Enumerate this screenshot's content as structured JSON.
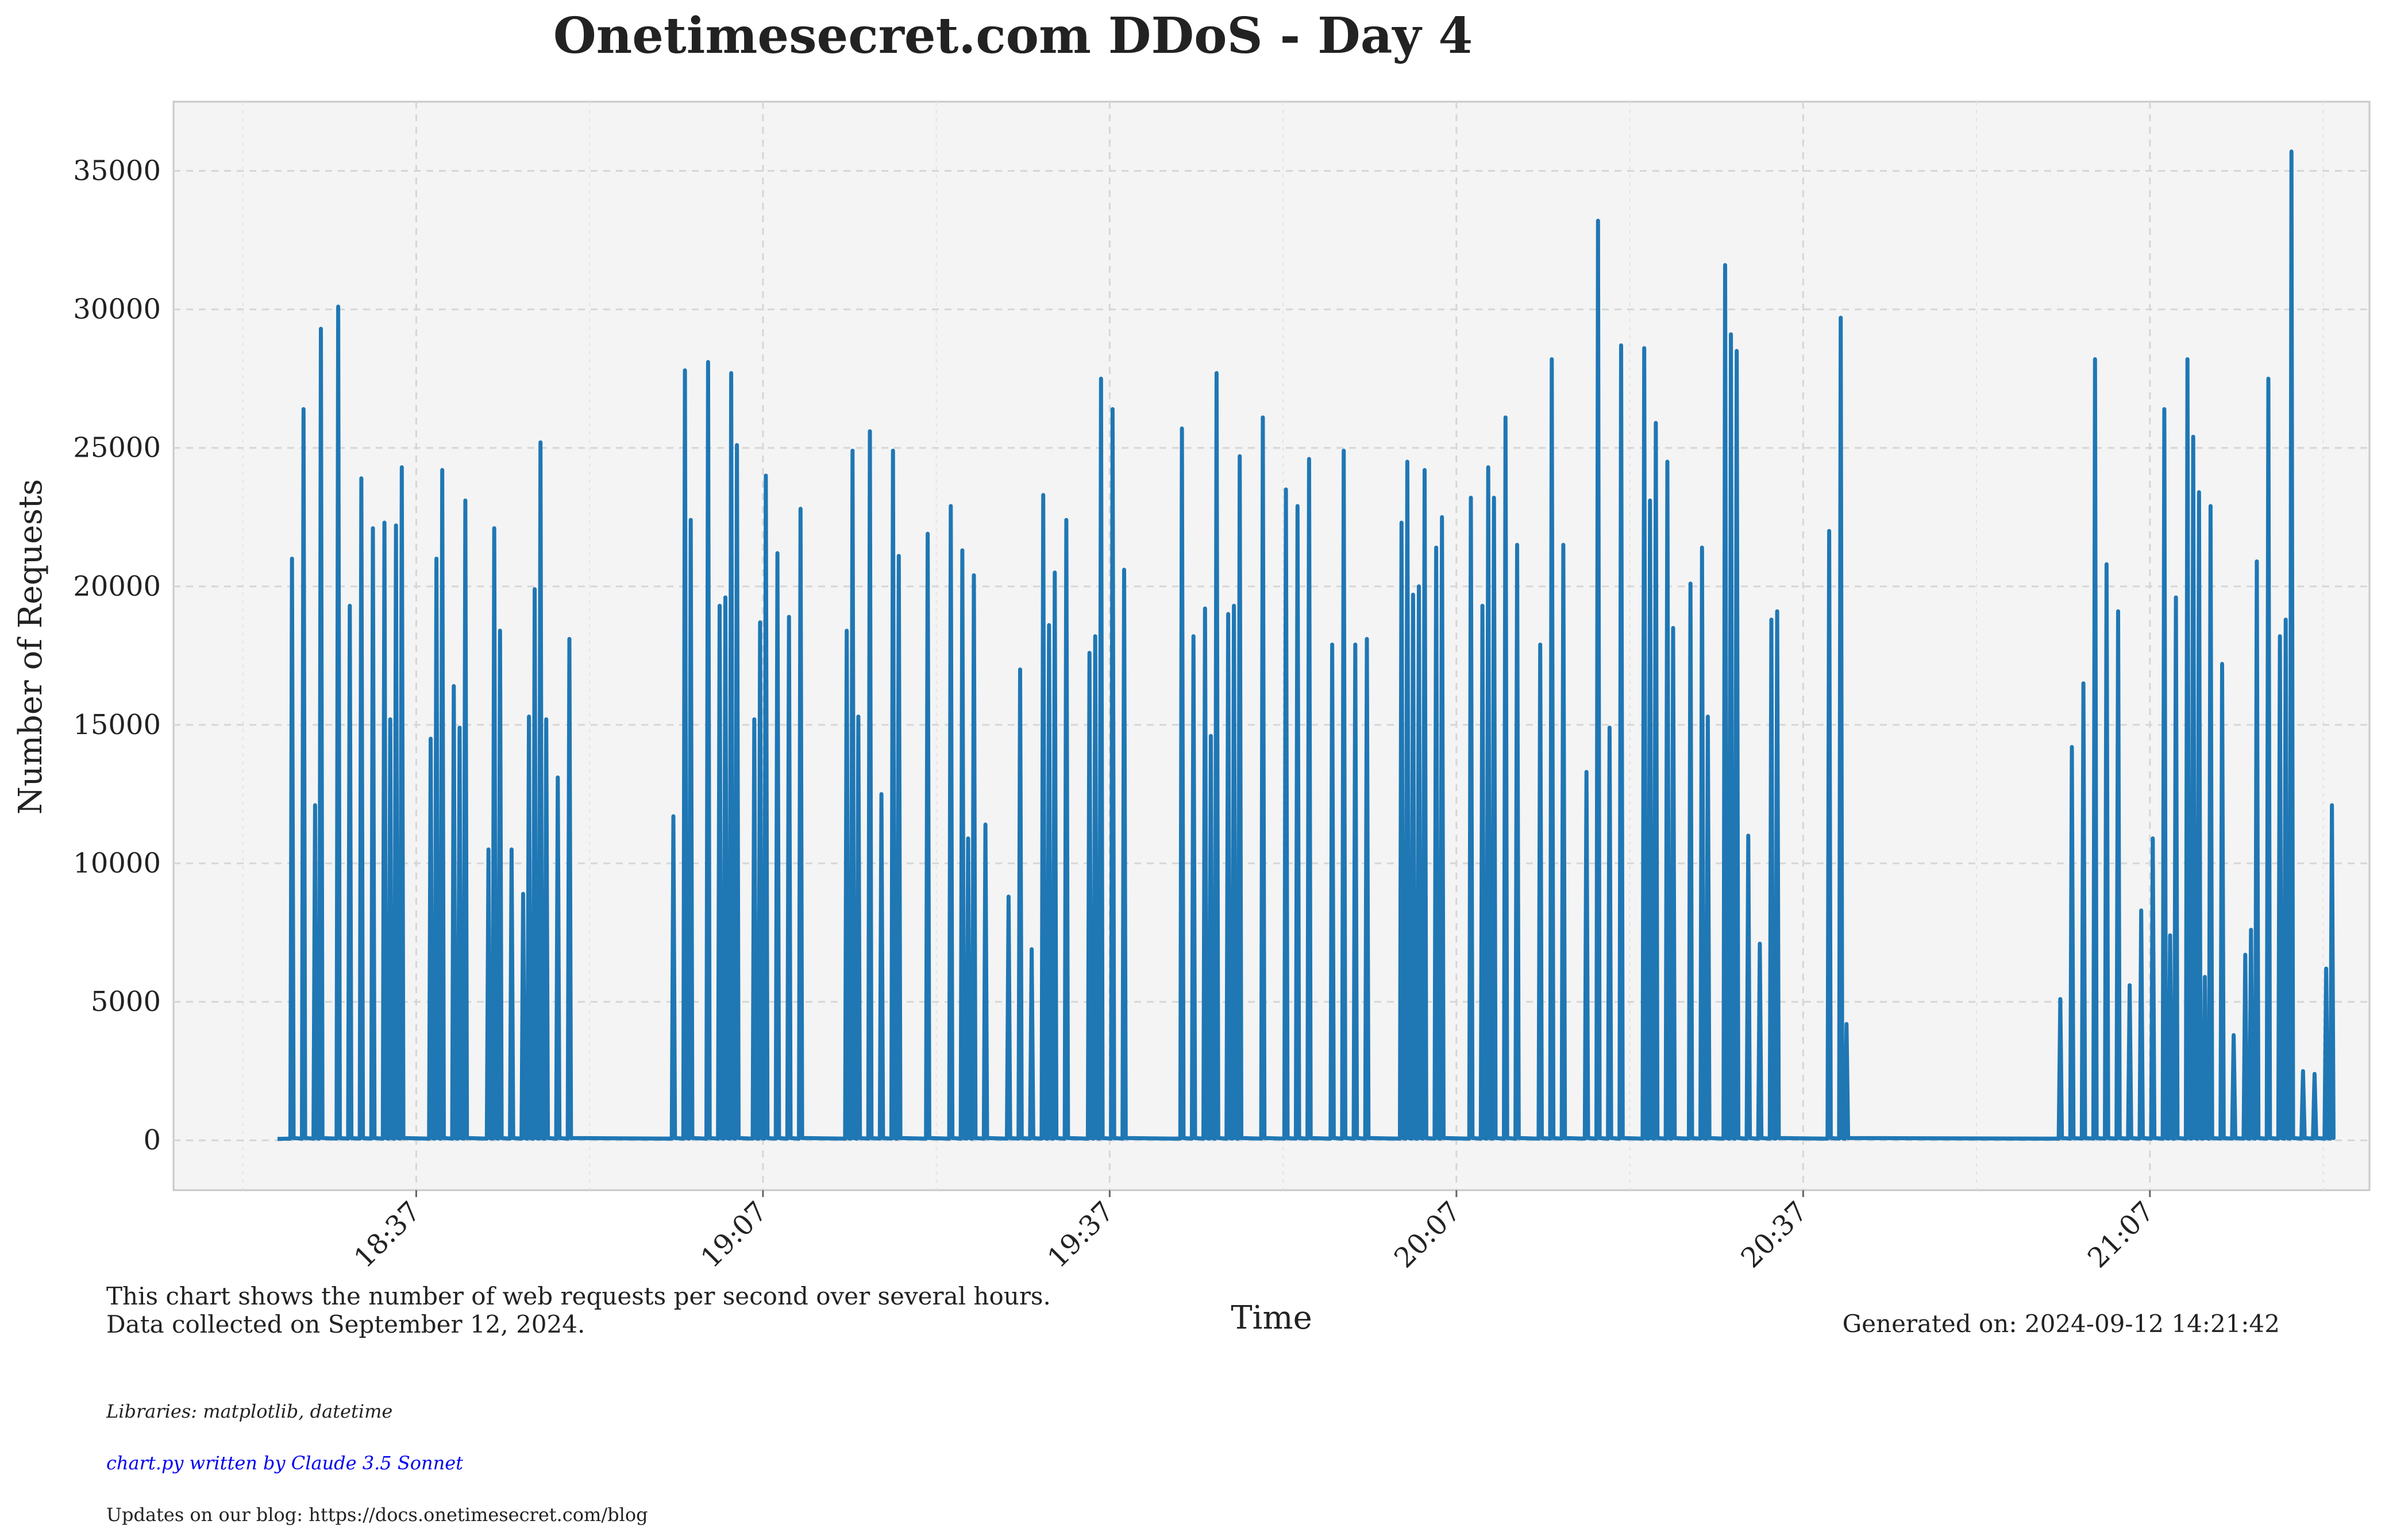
{
  "chart_data": {
    "type": "area",
    "title": "Onetimesecret.com DDoS - Day 4",
    "xlabel": "Time",
    "ylabel": "Number of Requests",
    "x_ticks": [
      "18:37",
      "19:07",
      "19:37",
      "20:07",
      "20:37",
      "21:07"
    ],
    "x_range": [
      "18:16",
      "21:26"
    ],
    "y_ticks": [
      0,
      5000,
      10000,
      15000,
      20000,
      25000,
      30000,
      35000
    ],
    "ylim": [
      -1800,
      37500
    ],
    "grid": true,
    "line_color": "#1f77b4",
    "fill_color": "#aec7e8",
    "plot_background": "#f4f4f4",
    "peaks": [
      [
        "18:26",
        21000
      ],
      [
        "18:27",
        26400
      ],
      [
        "18:28",
        12100
      ],
      [
        "18:28",
        29300
      ],
      [
        "18:30",
        30100
      ],
      [
        "18:31",
        19300
      ],
      [
        "18:32",
        23900
      ],
      [
        "18:33",
        22100
      ],
      [
        "18:34",
        22300
      ],
      [
        "18:34",
        15200
      ],
      [
        "18:35",
        22200
      ],
      [
        "18:35",
        24300
      ],
      [
        "18:38",
        14500
      ],
      [
        "18:38",
        21000
      ],
      [
        "18:39",
        24200
      ],
      [
        "18:40",
        16400
      ],
      [
        "18:40",
        14900
      ],
      [
        "18:41",
        23100
      ],
      [
        "18:43",
        10500
      ],
      [
        "18:43",
        22100
      ],
      [
        "18:44",
        18400
      ],
      [
        "18:45",
        10500
      ],
      [
        "18:46",
        8900
      ],
      [
        "18:46",
        15300
      ],
      [
        "18:47",
        19900
      ],
      [
        "18:47",
        25200
      ],
      [
        "18:48",
        15200
      ],
      [
        "18:49",
        13100
      ],
      [
        "18:50",
        18100
      ],
      [
        "18:59",
        11700
      ],
      [
        "19:00",
        27800
      ],
      [
        "19:00",
        22400
      ],
      [
        "19:02",
        28100
      ],
      [
        "19:03",
        19300
      ],
      [
        "19:03",
        19600
      ],
      [
        "19:04",
        27700
      ],
      [
        "19:04",
        25100
      ],
      [
        "19:06",
        15200
      ],
      [
        "19:06",
        18700
      ],
      [
        "19:07",
        24000
      ],
      [
        "19:08",
        21200
      ],
      [
        "19:09",
        18900
      ],
      [
        "19:10",
        22800
      ],
      [
        "19:14",
        18400
      ],
      [
        "19:14",
        24900
      ],
      [
        "19:15",
        15300
      ],
      [
        "19:16",
        25600
      ],
      [
        "19:17",
        12500
      ],
      [
        "19:18",
        24900
      ],
      [
        "19:18",
        21100
      ],
      [
        "19:21",
        21900
      ],
      [
        "19:23",
        22900
      ],
      [
        "19:24",
        21300
      ],
      [
        "19:24",
        10900
      ],
      [
        "19:25",
        20400
      ],
      [
        "19:26",
        11400
      ],
      [
        "19:28",
        8800
      ],
      [
        "19:29",
        17000
      ],
      [
        "19:30",
        6900
      ],
      [
        "19:31",
        23300
      ],
      [
        "19:31",
        18600
      ],
      [
        "19:32",
        20500
      ],
      [
        "19:33",
        22400
      ],
      [
        "19:35",
        17600
      ],
      [
        "19:35",
        18200
      ],
      [
        "19:36",
        27500
      ],
      [
        "19:37",
        26400
      ],
      [
        "19:38",
        20600
      ],
      [
        "19:43",
        25700
      ],
      [
        "19:44",
        18200
      ],
      [
        "19:45",
        19200
      ],
      [
        "19:45",
        14600
      ],
      [
        "19:46",
        27700
      ],
      [
        "19:47",
        19000
      ],
      [
        "19:47",
        19300
      ],
      [
        "19:48",
        24700
      ],
      [
        "19:50",
        26100
      ],
      [
        "19:52",
        23500
      ],
      [
        "19:53",
        22900
      ],
      [
        "19:54",
        24600
      ],
      [
        "19:56",
        17900
      ],
      [
        "19:57",
        24900
      ],
      [
        "19:58",
        17900
      ],
      [
        "19:59",
        18100
      ],
      [
        "20:02",
        22300
      ],
      [
        "20:02",
        24500
      ],
      [
        "20:03",
        19700
      ],
      [
        "20:03",
        20000
      ],
      [
        "20:04",
        24200
      ],
      [
        "20:05",
        21400
      ],
      [
        "20:05",
        22500
      ],
      [
        "20:08",
        23200
      ],
      [
        "20:09",
        19300
      ],
      [
        "20:09",
        24300
      ],
      [
        "20:10",
        23200
      ],
      [
        "20:11",
        26100
      ],
      [
        "20:12",
        21500
      ],
      [
        "20:14",
        17900
      ],
      [
        "20:15",
        28200
      ],
      [
        "20:16",
        21500
      ],
      [
        "20:18",
        13300
      ],
      [
        "20:19",
        33200
      ],
      [
        "20:20",
        14900
      ],
      [
        "20:21",
        28700
      ],
      [
        "20:23",
        28600
      ],
      [
        "20:23",
        23100
      ],
      [
        "20:24",
        25900
      ],
      [
        "20:25",
        24500
      ],
      [
        "20:25",
        18500
      ],
      [
        "20:27",
        20100
      ],
      [
        "20:28",
        21400
      ],
      [
        "20:28",
        15300
      ],
      [
        "20:30",
        31600
      ],
      [
        "20:30",
        29100
      ],
      [
        "20:31",
        28500
      ],
      [
        "20:32",
        11000
      ],
      [
        "20:33",
        7100
      ],
      [
        "20:34",
        18800
      ],
      [
        "20:34",
        19100
      ],
      [
        "20:39",
        22000
      ],
      [
        "20:40",
        29700
      ],
      [
        "20:40",
        4200
      ],
      [
        "20:59",
        5100
      ],
      [
        "21:00",
        14200
      ],
      [
        "21:01",
        16500
      ],
      [
        "21:02",
        28200
      ],
      [
        "21:03",
        20800
      ],
      [
        "21:04",
        19100
      ],
      [
        "21:05",
        5600
      ],
      [
        "21:06",
        8300
      ],
      [
        "21:07",
        10900
      ],
      [
        "21:08",
        26400
      ],
      [
        "21:08",
        7400
      ],
      [
        "21:09",
        19600
      ],
      [
        "21:10",
        28200
      ],
      [
        "21:10",
        25400
      ],
      [
        "21:11",
        23400
      ],
      [
        "21:11",
        5900
      ],
      [
        "21:12",
        22900
      ],
      [
        "21:13",
        17200
      ],
      [
        "21:14",
        3800
      ],
      [
        "21:15",
        6700
      ],
      [
        "21:15",
        7600
      ],
      [
        "21:16",
        20900
      ],
      [
        "21:17",
        27500
      ],
      [
        "21:18",
        18200
      ],
      [
        "21:18",
        18800
      ],
      [
        "21:19",
        35700
      ],
      [
        "21:20",
        2500
      ],
      [
        "21:21",
        2400
      ],
      [
        "21:22",
        6200
      ],
      [
        "21:22",
        12100
      ]
    ]
  },
  "footer": {
    "description_line1": "This chart shows the number of web requests per second over several hours.",
    "description_line2": "Data collected on September 12, 2024.",
    "generated": "Generated on: 2024-09-12 14:21:42",
    "libraries": "Libraries: matplotlib, datetime",
    "credit": "chart.py written by Claude 3.5 Sonnet",
    "credit_color": "#0000ee",
    "blog": "Updates on our blog: https://docs.onetimesecret.com/blog"
  }
}
